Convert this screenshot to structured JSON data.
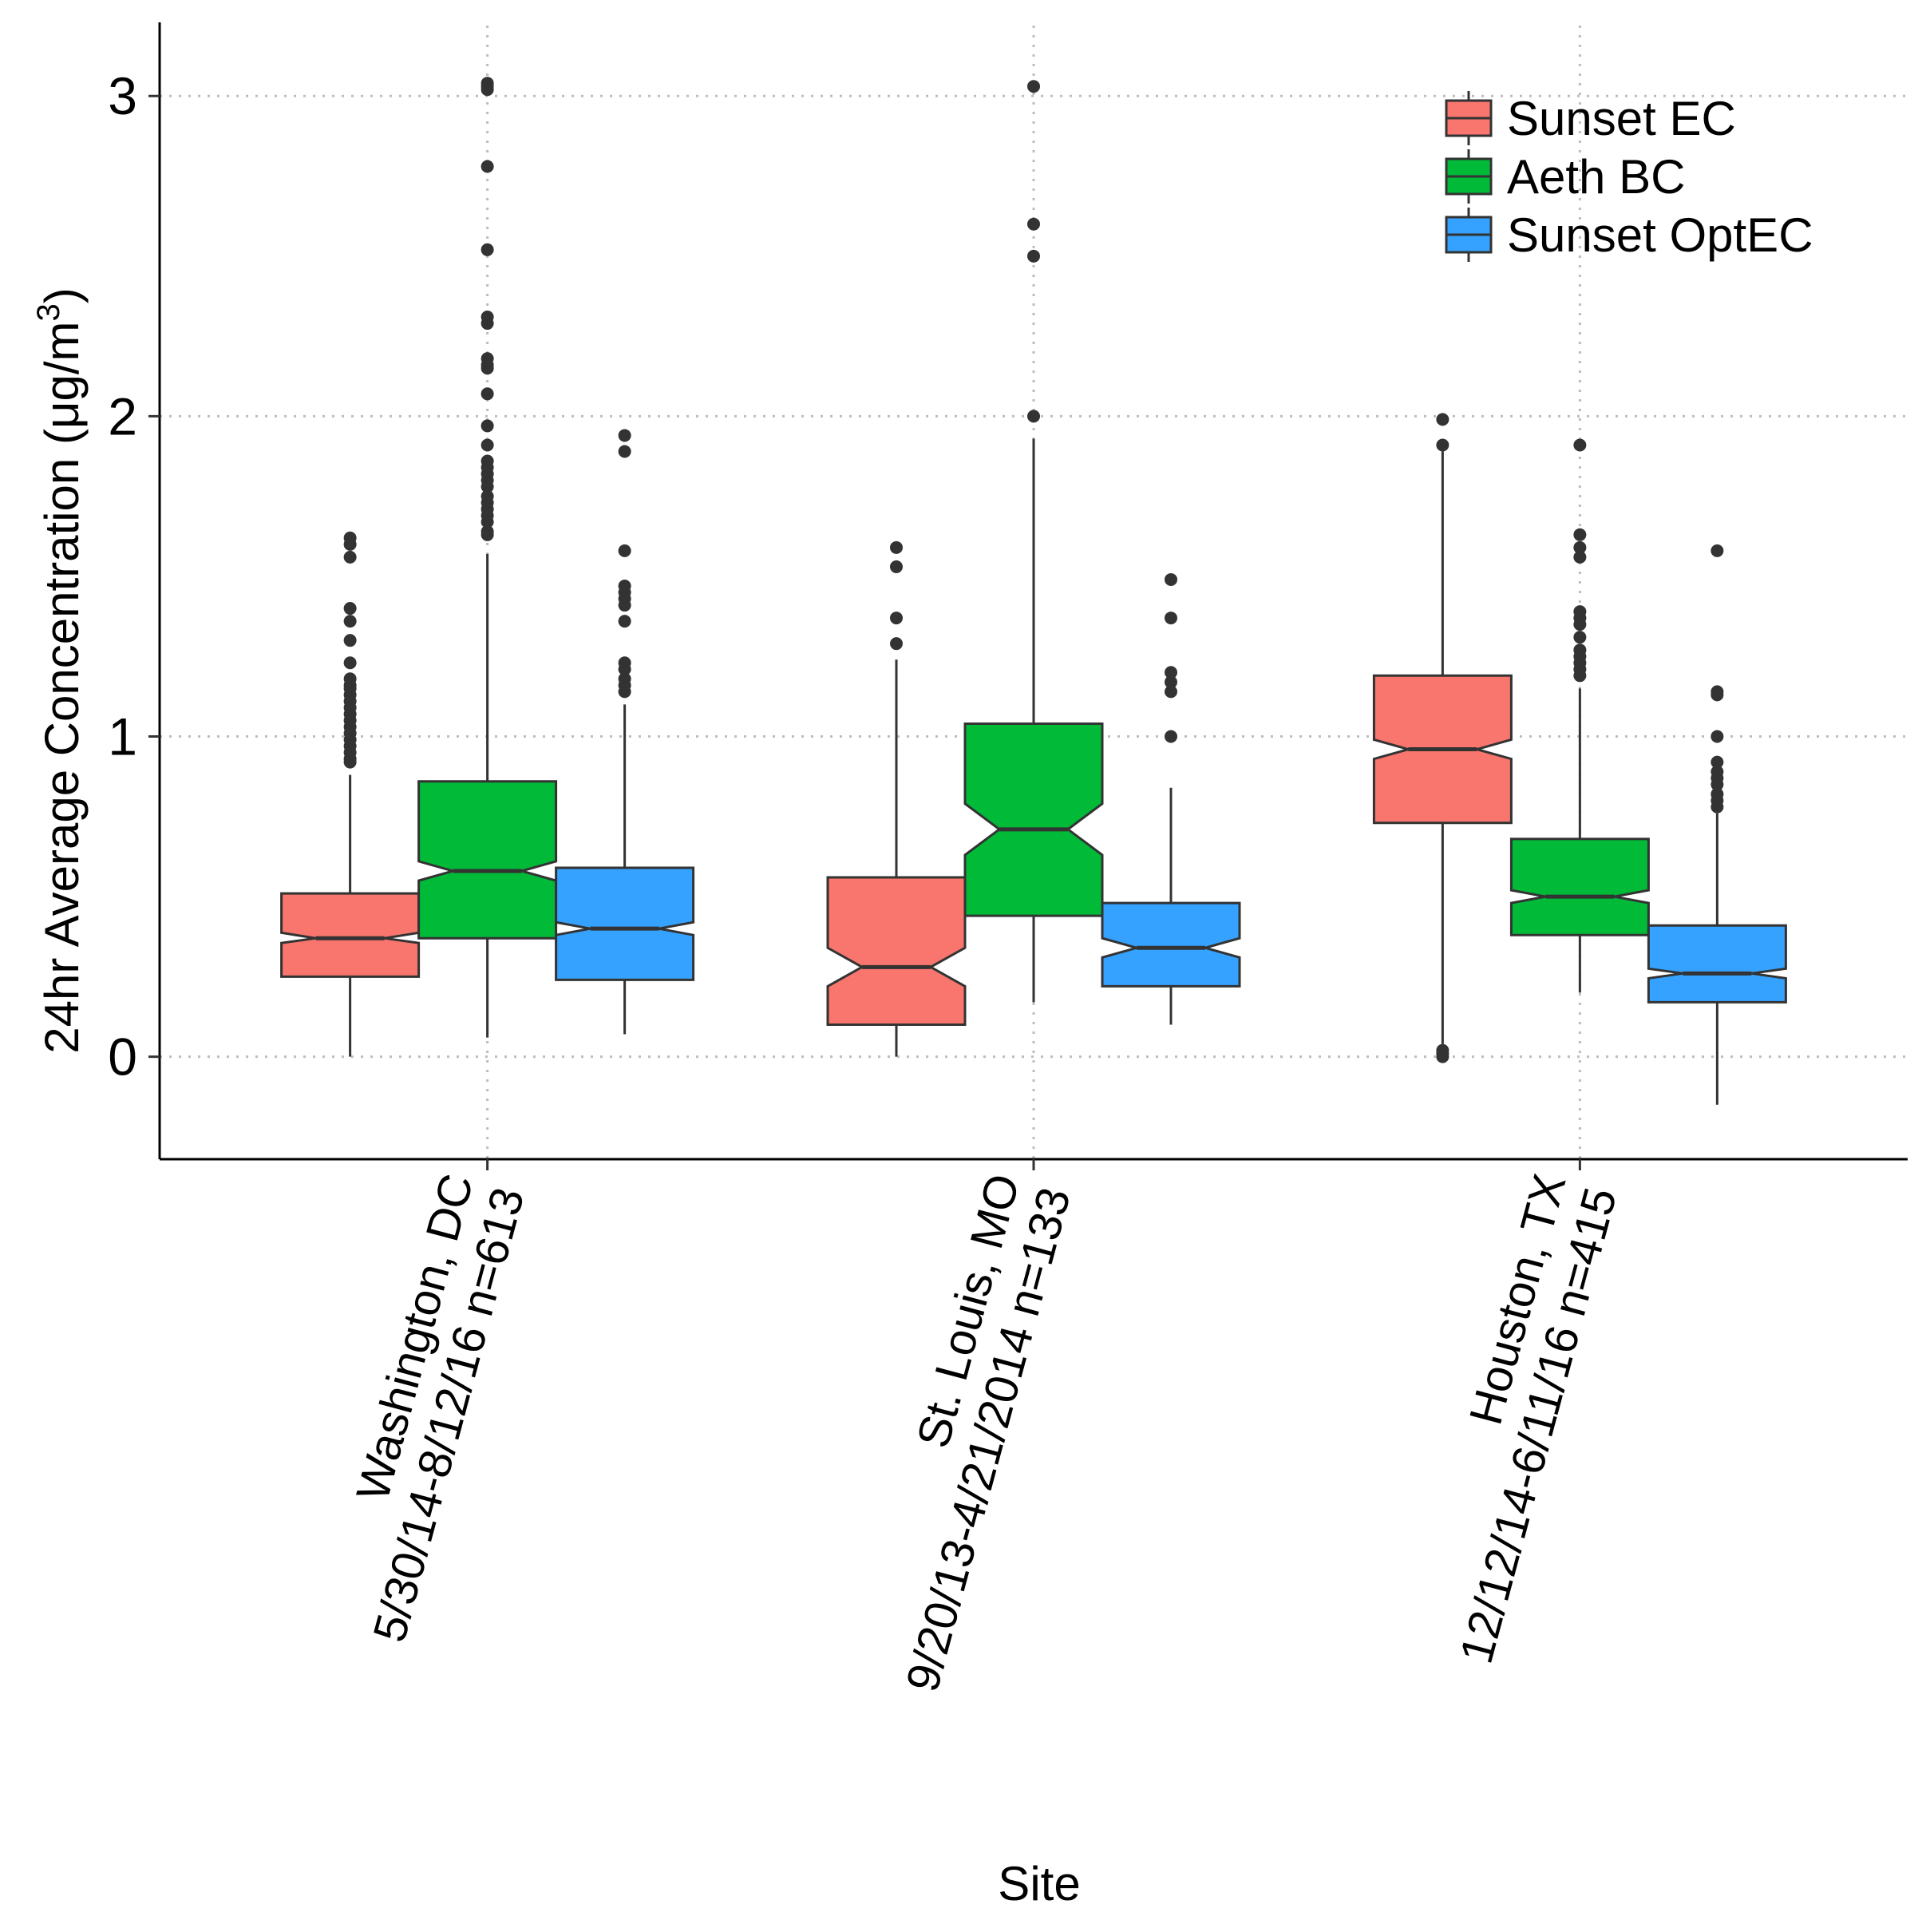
{
  "chart_data": {
    "type": "boxplot",
    "notched": true,
    "xlabel": "Site",
    "ylabel_prefix": "24hr Average Concentration (",
    "ylabel_unit": "μg/m",
    "ylabel_superscript": "3",
    "ylabel_suffix": ")",
    "ylim": [
      -0.32,
      3.22
    ],
    "y_ticks": [
      0,
      1,
      2,
      3
    ],
    "y_tick_labels": [
      "0",
      "1",
      "2",
      "3"
    ],
    "grid": true,
    "legend_position": "top-right",
    "series": [
      {
        "name": "Sunset EC",
        "color": "#F8766D"
      },
      {
        "name": "Aeth BC",
        "color": "#00BA38"
      },
      {
        "name": "Sunset OptEC",
        "color": "#35A2FF"
      }
    ],
    "categories": [
      {
        "line1": "Washington, DC",
        "line2": "5/30/14-8/12/16 n=613",
        "boxes": [
          {
            "series": "Sunset EC",
            "q1": 0.25,
            "median": 0.37,
            "q3": 0.51,
            "notch_low": 0.355,
            "notch_high": 0.387,
            "whisker_low": 0.0,
            "whisker_high": 0.88,
            "outliers": [
              1.62,
              1.6,
              1.56,
              1.4,
              1.36,
              1.3,
              1.23,
              1.18,
              1.16,
              1.15,
              1.13,
              1.11,
              1.09,
              1.07,
              1.05,
              1.03,
              1.01,
              0.99,
              0.97,
              0.95,
              0.93,
              0.92
            ]
          },
          {
            "series": "Aeth BC",
            "q1": 0.37,
            "median": 0.58,
            "q3": 0.86,
            "notch_low": 0.55,
            "notch_high": 0.61,
            "whisker_low": 0.06,
            "whisker_high": 1.57,
            "outliers": [
              3.04,
              3.03,
              3.02,
              2.78,
              2.52,
              2.31,
              2.29,
              2.18,
              2.16,
              2.15,
              2.07,
              1.97,
              1.91,
              1.86,
              1.84,
              1.82,
              1.8,
              1.78,
              1.75,
              1.73,
              1.71,
              1.69,
              1.67,
              1.64,
              1.63
            ]
          },
          {
            "series": "Sunset OptEC",
            "q1": 0.24,
            "median": 0.4,
            "q3": 0.59,
            "notch_low": 0.38,
            "notch_high": 0.42,
            "whisker_low": 0.07,
            "whisker_high": 1.1,
            "outliers": [
              1.94,
              1.89,
              1.58,
              1.47,
              1.45,
              1.43,
              1.41,
              1.36,
              1.23,
              1.21,
              1.18,
              1.16,
              1.14
            ]
          }
        ]
      },
      {
        "line1": "St. Louis, MO",
        "line2": "9/20/13-4/21/2014 n=133",
        "boxes": [
          {
            "series": "Sunset EC",
            "q1": 0.1,
            "median": 0.28,
            "q3": 0.56,
            "notch_low": 0.22,
            "notch_high": 0.34,
            "whisker_low": 0.0,
            "whisker_high": 1.24,
            "outliers": [
              1.59,
              1.53,
              1.37,
              1.29
            ]
          },
          {
            "series": "Aeth BC",
            "q1": 0.44,
            "median": 0.71,
            "q3": 1.04,
            "notch_low": 0.63,
            "notch_high": 0.79,
            "whisker_low": 0.17,
            "whisker_high": 1.93,
            "outliers": [
              3.03,
              2.6,
              2.5,
              2.0
            ]
          },
          {
            "series": "Sunset OptEC",
            "q1": 0.22,
            "median": 0.34,
            "q3": 0.48,
            "notch_low": 0.31,
            "notch_high": 0.37,
            "whisker_low": 0.1,
            "whisker_high": 0.84,
            "outliers": [
              1.49,
              1.37,
              1.2,
              1.17,
              1.14,
              1.0
            ]
          }
        ]
      },
      {
        "line1": "Houston, TX",
        "line2": "12/12/14-6/11/16 n=415",
        "boxes": [
          {
            "series": "Sunset EC",
            "q1": 0.73,
            "median": 0.96,
            "q3": 1.19,
            "notch_low": 0.93,
            "notch_high": 0.99,
            "whisker_low": 0.04,
            "whisker_high": 1.89,
            "outliers": [
              1.99,
              1.91,
              0.02,
              0.01,
              0.0
            ]
          },
          {
            "series": "Aeth BC",
            "q1": 0.38,
            "median": 0.5,
            "q3": 0.68,
            "notch_low": 0.48,
            "notch_high": 0.52,
            "whisker_low": 0.2,
            "whisker_high": 1.15,
            "outliers": [
              1.91,
              1.63,
              1.59,
              1.56,
              1.39,
              1.37,
              1.35,
              1.31,
              1.27,
              1.25,
              1.23,
              1.21,
              1.19
            ]
          },
          {
            "series": "Sunset OptEC",
            "q1": 0.17,
            "median": 0.26,
            "q3": 0.41,
            "notch_low": 0.245,
            "notch_high": 0.275,
            "whisker_low": -0.15,
            "whisker_high": 0.76,
            "outliers": [
              1.58,
              1.14,
              1.13,
              1.0,
              0.92,
              0.89,
              0.87,
              0.85,
              0.82,
              0.8,
              0.78
            ]
          }
        ]
      }
    ]
  }
}
